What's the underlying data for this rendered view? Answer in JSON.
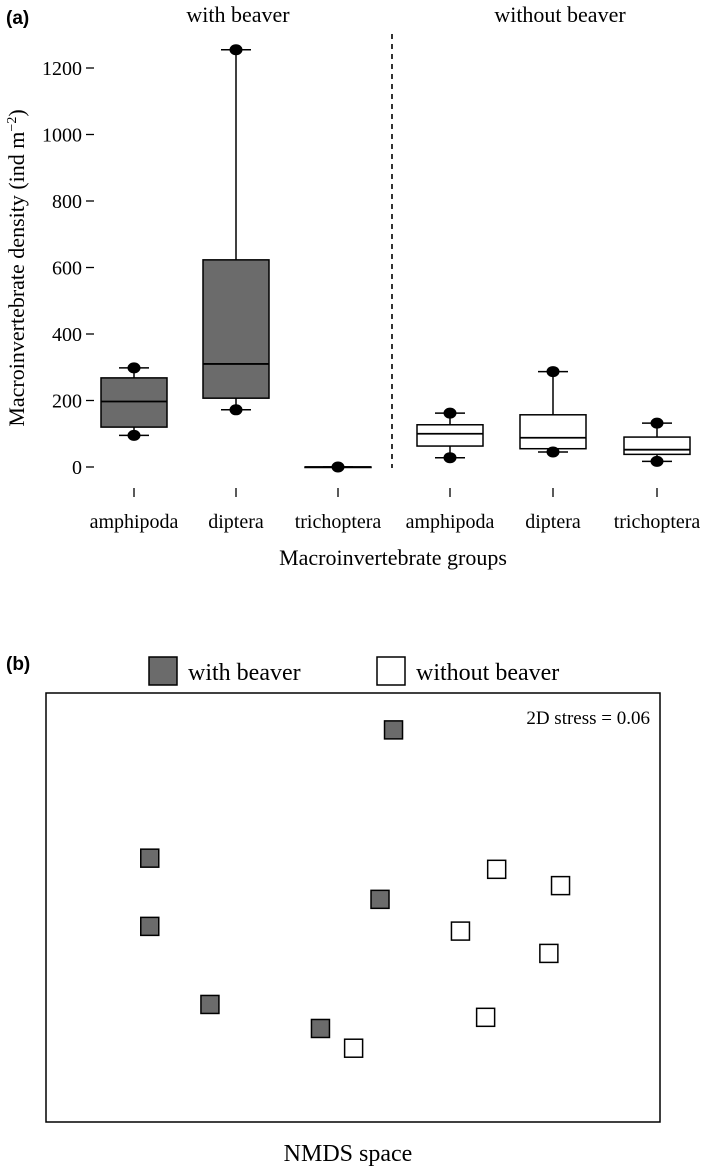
{
  "panel_a": {
    "label": "(a)",
    "group_with": "with beaver",
    "group_without": "without beaver",
    "ylabel": "Macroinvertebrate density (ind m",
    "ylabel_sup": "−2",
    "ylabel_close": ")",
    "xlabel": "Macroinvertebrate groups"
  },
  "panel_b": {
    "label": "(b)",
    "legend_with": "with beaver",
    "legend_without": "without beaver",
    "stress": "2D stress = 0.06",
    "xlabel": "NMDS space"
  },
  "colors": {
    "with_beaver_fill": "#6b6b6b",
    "without_beaver_fill": "#ffffff",
    "stroke": "#000000"
  },
  "chart_data": [
    {
      "type": "box",
      "ylim": [
        0,
        1300
      ],
      "yticks": [
        0,
        200,
        400,
        600,
        800,
        1000,
        1200
      ],
      "categories": [
        "amphipoda",
        "diptera",
        "trichoptera",
        "amphipoda",
        "diptera",
        "trichoptera"
      ],
      "series": [
        {
          "name": "with beaver",
          "boxes": [
            {
              "category": "amphipoda",
              "min": 95,
              "q1": 120,
              "median": 197,
              "q3": 268,
              "max": 298
            },
            {
              "category": "diptera",
              "min": 172,
              "q1": 207,
              "median": 310,
              "q3": 623,
              "max": 1255
            },
            {
              "category": "trichoptera",
              "min": 0,
              "q1": 0,
              "median": 0,
              "q3": 0,
              "max": 0
            }
          ]
        },
        {
          "name": "without beaver",
          "boxes": [
            {
              "category": "amphipoda",
              "min": 28,
              "q1": 63,
              "median": 100,
              "q3": 127,
              "max": 162
            },
            {
              "category": "diptera",
              "min": 45,
              "q1": 55,
              "median": 88,
              "q3": 157,
              "max": 287
            },
            {
              "category": "trichoptera",
              "min": 17,
              "q1": 38,
              "median": 52,
              "q3": 90,
              "max": 132
            }
          ]
        }
      ]
    },
    {
      "type": "scatter",
      "xlim": [
        0,
        100
      ],
      "ylim": [
        0,
        100
      ],
      "axes_ticks": false,
      "legend": "top",
      "series": [
        {
          "name": "with beaver",
          "points": [
            [
              56.6,
              91.4
            ],
            [
              16.9,
              61.5
            ],
            [
              16.9,
              45.6
            ],
            [
              54.4,
              51.9
            ],
            [
              26.7,
              27.4
            ],
            [
              44.7,
              21.8
            ]
          ]
        },
        {
          "name": "without beaver",
          "points": [
            [
              73.4,
              58.9
            ],
            [
              83.8,
              55.1
            ],
            [
              67.5,
              44.5
            ],
            [
              81.9,
              39.3
            ],
            [
              71.6,
              24.4
            ],
            [
              50.1,
              17.2
            ]
          ]
        }
      ]
    }
  ]
}
